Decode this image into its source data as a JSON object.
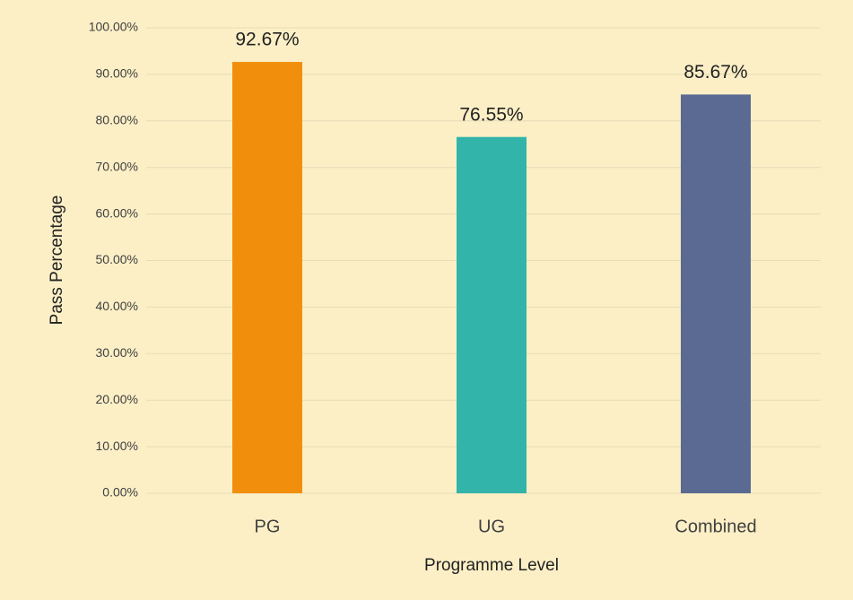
{
  "chart_data": {
    "type": "bar",
    "x_label": "Programme Level",
    "y_label": "Pass Percentage",
    "categories": [
      "PG",
      "UG",
      "Combined"
    ],
    "values": [
      92.67,
      76.55,
      85.67
    ],
    "value_labels": [
      "92.67%",
      "76.55%",
      "85.67%"
    ],
    "colors": [
      "#f18f0c",
      "#33b4aa",
      "#5a6a92"
    ],
    "ylim": [
      0,
      100
    ],
    "yticks": [
      {
        "value": 0,
        "label": "0.00%"
      },
      {
        "value": 10,
        "label": "10.00%"
      },
      {
        "value": 20,
        "label": "20.00%"
      },
      {
        "value": 30,
        "label": "30.00%"
      },
      {
        "value": 40,
        "label": "40.00%"
      },
      {
        "value": 50,
        "label": "50.00%"
      },
      {
        "value": 60,
        "label": "60.00%"
      },
      {
        "value": 70,
        "label": "70.00%"
      },
      {
        "value": 80,
        "label": "80.00%"
      },
      {
        "value": 90,
        "label": "90.00%"
      },
      {
        "value": 100,
        "label": "100.00%"
      }
    ],
    "grid": true
  }
}
